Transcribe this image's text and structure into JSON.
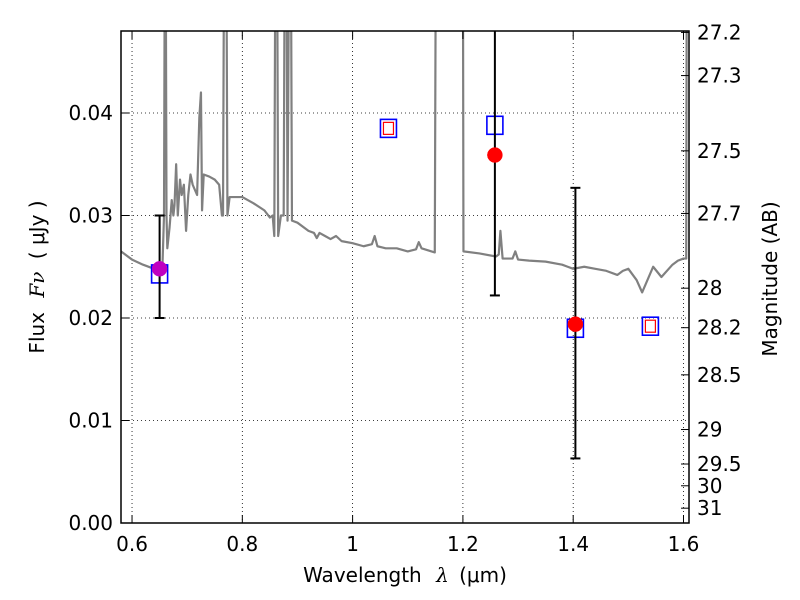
{
  "chart_data": {
    "type": "scatter",
    "title": "",
    "xlabel": {
      "prefix": "Wavelength",
      "symbol": "λ",
      "unit": "(μm)"
    },
    "ylabel": {
      "prefix": "Flux",
      "symbol": "Fν",
      "unit": "( μJy )"
    },
    "y2label": "Magnitude (AB)",
    "xlim": [
      0.58,
      1.61
    ],
    "ylim": [
      0.0,
      0.048
    ],
    "grid": true,
    "legend": "none",
    "x_ticks": [
      {
        "value": 0.6,
        "label": "0.6"
      },
      {
        "value": 0.8,
        "label": "0.8"
      },
      {
        "value": 1.0,
        "label": "1"
      },
      {
        "value": 1.2,
        "label": "1.2"
      },
      {
        "value": 1.4,
        "label": "1.4"
      },
      {
        "value": 1.6,
        "label": "1.6"
      }
    ],
    "y_ticks": [
      {
        "value": 0.0,
        "label": "0.00"
      },
      {
        "value": 0.01,
        "label": "0.01"
      },
      {
        "value": 0.02,
        "label": "0.02"
      },
      {
        "value": 0.03,
        "label": "0.03"
      },
      {
        "value": 0.04,
        "label": "0.04"
      }
    ],
    "y2_ticks": [
      {
        "value": 27.2,
        "label": "27.2"
      },
      {
        "value": 27.3,
        "label": "27.3"
      },
      {
        "value": 27.5,
        "label": "27.5"
      },
      {
        "value": 27.7,
        "label": "27.7"
      },
      {
        "value": 28.0,
        "label": "28"
      },
      {
        "value": 28.2,
        "label": "28.2"
      },
      {
        "value": 28.5,
        "label": "28.5"
      },
      {
        "value": 29.0,
        "label": "29"
      },
      {
        "value": 29.5,
        "label": "29.5"
      },
      {
        "value": 30.0,
        "label": "30"
      },
      {
        "value": 31.0,
        "label": "31"
      }
    ],
    "series": [
      {
        "kind": "model_sed_line",
        "color": "#808080",
        "points": [
          [
            0.58,
            0.0265
          ],
          [
            0.6,
            0.0257
          ],
          [
            0.62,
            0.0252
          ],
          [
            0.64,
            0.0248
          ],
          [
            0.65,
            0.0246
          ],
          [
            0.655,
            0.0248
          ],
          [
            0.658,
            0.03
          ],
          [
            0.6595,
            0.058
          ],
          [
            0.661,
            0.058
          ],
          [
            0.6625,
            0.03
          ],
          [
            0.664,
            0.0268
          ],
          [
            0.668,
            0.0288
          ],
          [
            0.672,
            0.0315
          ],
          [
            0.675,
            0.03
          ],
          [
            0.677,
            0.031
          ],
          [
            0.68,
            0.035
          ],
          [
            0.683,
            0.03
          ],
          [
            0.687,
            0.0335
          ],
          [
            0.69,
            0.032
          ],
          [
            0.694,
            0.033
          ],
          [
            0.698,
            0.0285
          ],
          [
            0.702,
            0.032
          ],
          [
            0.706,
            0.034
          ],
          [
            0.71,
            0.033
          ],
          [
            0.718,
            0.032
          ],
          [
            0.722,
            0.0395
          ],
          [
            0.725,
            0.042
          ],
          [
            0.727,
            0.0305
          ],
          [
            0.73,
            0.034
          ],
          [
            0.74,
            0.0338
          ],
          [
            0.75,
            0.0335
          ],
          [
            0.758,
            0.033
          ],
          [
            0.763,
            0.03
          ],
          [
            0.765,
            0.03
          ],
          [
            0.767,
            0.058
          ],
          [
            0.771,
            0.058
          ],
          [
            0.773,
            0.03
          ],
          [
            0.777,
            0.0318
          ],
          [
            0.8,
            0.0318
          ],
          [
            0.82,
            0.0312
          ],
          [
            0.84,
            0.0305
          ],
          [
            0.85,
            0.0298
          ],
          [
            0.855,
            0.03
          ],
          [
            0.858,
            0.028
          ],
          [
            0.86,
            0.058
          ],
          [
            0.863,
            0.058
          ],
          [
            0.865,
            0.028
          ],
          [
            0.87,
            0.03
          ],
          [
            0.875,
            0.03
          ],
          [
            0.877,
            0.058
          ],
          [
            0.88,
            0.058
          ],
          [
            0.882,
            0.0295
          ],
          [
            0.885,
            0.058
          ],
          [
            0.888,
            0.058
          ],
          [
            0.89,
            0.0295
          ],
          [
            0.9,
            0.0293
          ],
          [
            0.92,
            0.0285
          ],
          [
            0.93,
            0.0283
          ],
          [
            0.935,
            0.0278
          ],
          [
            0.94,
            0.0283
          ],
          [
            0.95,
            0.028
          ],
          [
            0.96,
            0.0277
          ],
          [
            0.97,
            0.028
          ],
          [
            0.98,
            0.0275
          ],
          [
            1.0,
            0.0273
          ],
          [
            1.02,
            0.027
          ],
          [
            1.035,
            0.0272
          ],
          [
            1.04,
            0.028
          ],
          [
            1.045,
            0.027
          ],
          [
            1.06,
            0.0268
          ],
          [
            1.08,
            0.0268
          ],
          [
            1.1,
            0.0265
          ],
          [
            1.115,
            0.0267
          ],
          [
            1.12,
            0.0274
          ],
          [
            1.125,
            0.0268
          ],
          [
            1.149,
            0.0264
          ],
          [
            1.151,
            0.058
          ]
        ]
      },
      {
        "kind": "model_sed_line",
        "color": "#808080",
        "points": [
          [
            1.2,
            0.058
          ],
          [
            1.201,
            0.0265
          ],
          [
            1.23,
            0.0263
          ],
          [
            1.26,
            0.026
          ],
          [
            1.265,
            0.0262
          ],
          [
            1.268,
            0.0285
          ],
          [
            1.272,
            0.0258
          ],
          [
            1.29,
            0.0258
          ],
          [
            1.295,
            0.0265
          ],
          [
            1.3,
            0.0257
          ],
          [
            1.32,
            0.0256
          ],
          [
            1.35,
            0.0255
          ],
          [
            1.38,
            0.0252
          ],
          [
            1.39,
            0.025
          ],
          [
            1.4,
            0.0248
          ],
          [
            1.42,
            0.025
          ],
          [
            1.44,
            0.0248
          ],
          [
            1.46,
            0.0246
          ],
          [
            1.48,
            0.0242
          ],
          [
            1.49,
            0.0246
          ],
          [
            1.5,
            0.0248
          ],
          [
            1.515,
            0.0237
          ],
          [
            1.525,
            0.0225
          ],
          [
            1.545,
            0.025
          ],
          [
            1.56,
            0.024
          ],
          [
            1.58,
            0.0252
          ],
          [
            1.59,
            0.0256
          ],
          [
            1.6,
            0.0258
          ],
          [
            1.602,
            0.0258
          ],
          [
            1.605,
            0.0258
          ],
          [
            1.606,
            0.058
          ]
        ]
      },
      {
        "kind": "model_photometry",
        "marker": "open_square",
        "color": "#0000ff",
        "points": [
          [
            0.65,
            0.0243
          ],
          [
            1.065,
            0.0385
          ],
          [
            1.258,
            0.0388
          ],
          [
            1.404,
            0.019
          ],
          [
            1.54,
            0.0192
          ]
        ]
      },
      {
        "kind": "model_photometry_inner",
        "marker": "small_open_square",
        "color": "#ff0000",
        "points": [
          [
            1.065,
            0.0385
          ],
          [
            1.54,
            0.0192
          ]
        ]
      },
      {
        "kind": "observed",
        "marker": "filled_circle",
        "color": "#ff0000",
        "points": [
          {
            "x": 0.65,
            "y": 0.0248,
            "yerr_low": 0.02,
            "yerr_high": 0.03,
            "color": "#c000c0"
          },
          {
            "x": 1.258,
            "y": 0.0359,
            "yerr_low": 0.0222,
            "yerr_high": 0.048,
            "color": "#ff0000"
          },
          {
            "x": 1.404,
            "y": 0.0194,
            "yerr_low": 0.0063,
            "yerr_high": 0.0327,
            "color": "#ff0000"
          }
        ]
      }
    ]
  }
}
